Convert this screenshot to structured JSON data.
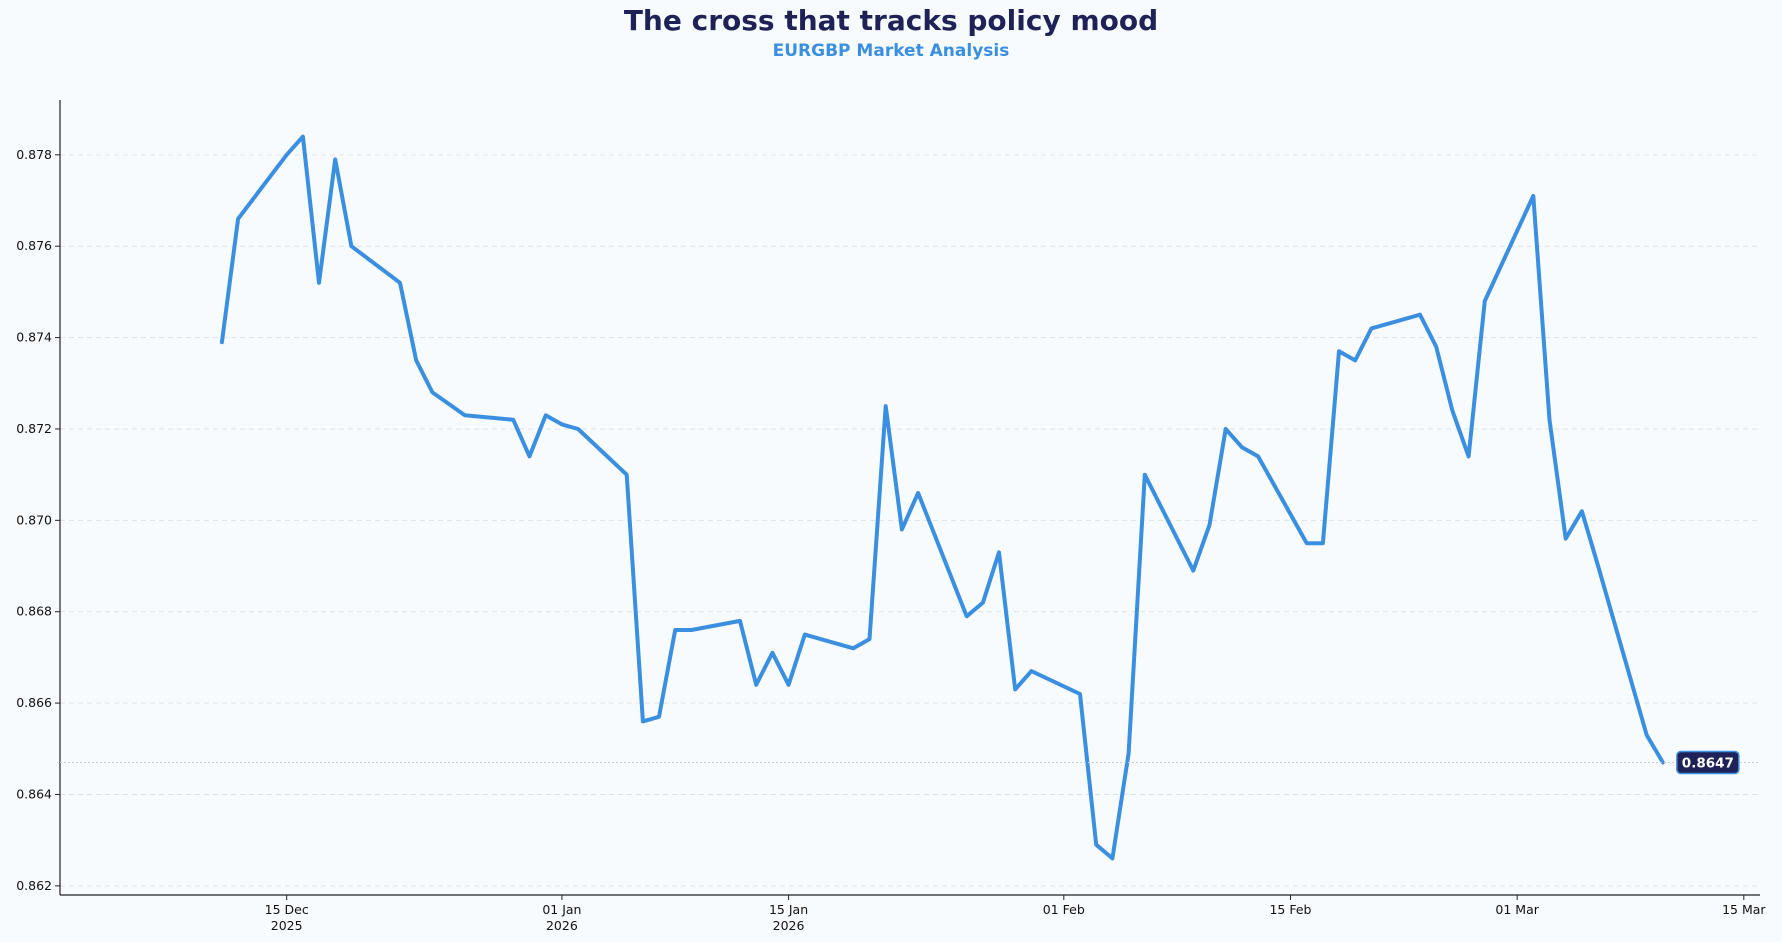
{
  "title": "The cross that tracks policy mood",
  "subtitle": "EURGBP Market Analysis",
  "chart_data": {
    "type": "line",
    "title": "The cross that tracks policy mood",
    "subtitle": "EURGBP Market Analysis",
    "xlabel": "",
    "ylabel": "",
    "ylim": [
      0.8618,
      0.8792
    ],
    "xlim": [
      "2025-12-01",
      "2026-03-16"
    ],
    "grid": "horizontal dashed",
    "color": "#3a8fe0",
    "y_ticks": [
      "0.862",
      "0.864",
      "0.866",
      "0.868",
      "0.870",
      "0.872",
      "0.874",
      "0.876",
      "0.878"
    ],
    "x_ticks": [
      {
        "date": "2025-12-15",
        "label": "15 Dec",
        "sublabel": "2025"
      },
      {
        "date": "2026-01-01",
        "label": "01 Jan",
        "sublabel": "2026"
      },
      {
        "date": "2026-01-15",
        "label": "15 Jan",
        "sublabel": "2026"
      },
      {
        "date": "2026-02-01",
        "label": "01 Feb",
        "sublabel": ""
      },
      {
        "date": "2026-02-15",
        "label": "15 Feb",
        "sublabel": ""
      },
      {
        "date": "2026-03-01",
        "label": "01 Mar",
        "sublabel": ""
      },
      {
        "date": "2026-03-15",
        "label": "15 Mar",
        "sublabel": ""
      }
    ],
    "series": [
      {
        "x": [
          "2025-12-11",
          "2025-12-12",
          "2025-12-15",
          "2025-12-16",
          "2025-12-17",
          "2025-12-18",
          "2025-12-19",
          "2025-12-22",
          "2025-12-23",
          "2025-12-24",
          "2025-12-26",
          "2025-12-29",
          "2025-12-30",
          "2025-12-31",
          "2026-01-01",
          "2026-01-02",
          "2026-01-05",
          "2026-01-06",
          "2026-01-07",
          "2026-01-08",
          "2026-01-09",
          "2026-01-12",
          "2026-01-13",
          "2026-01-14",
          "2026-01-15",
          "2026-01-16",
          "2026-01-19",
          "2026-01-20",
          "2026-01-21",
          "2026-01-22",
          "2026-01-23",
          "2026-01-26",
          "2026-01-27",
          "2026-01-28",
          "2026-01-29",
          "2026-01-30",
          "2026-02-02",
          "2026-02-03",
          "2026-02-04",
          "2026-02-05",
          "2026-02-06",
          "2026-02-09",
          "2026-02-10",
          "2026-02-11",
          "2026-02-12",
          "2026-02-13",
          "2026-02-16",
          "2026-02-17",
          "2026-02-18",
          "2026-02-19",
          "2026-02-20",
          "2026-02-23",
          "2026-02-24",
          "2026-02-25",
          "2026-02-26",
          "2026-02-27",
          "2026-03-02",
          "2026-03-03",
          "2026-03-04",
          "2026-03-05",
          "2026-03-06",
          "2026-03-09",
          "2026-03-10"
        ],
        "values": [
          0.8739,
          0.8766,
          0.878,
          0.8784,
          0.8752,
          0.8779,
          0.876,
          0.8752,
          0.8735,
          0.8728,
          0.8723,
          0.8722,
          0.8714,
          0.8723,
          0.8721,
          0.872,
          0.871,
          0.8656,
          0.8657,
          0.8676,
          0.8676,
          0.8678,
          0.8664,
          0.8671,
          0.8664,
          0.8675,
          0.8672,
          0.8674,
          0.8725,
          0.8698,
          0.8706,
          0.8679,
          0.8682,
          0.8693,
          0.8663,
          0.8667,
          0.8662,
          0.8629,
          0.8626,
          0.8649,
          0.871,
          0.8689,
          0.8699,
          0.872,
          0.8716,
          0.8714,
          0.8695,
          0.8695,
          0.8737,
          0.8735,
          0.8742,
          0.8745,
          0.8738,
          0.8724,
          0.8714,
          0.8748,
          0.8771,
          0.8722,
          0.8696,
          0.8702,
          0.869,
          0.8653,
          0.8647
        ]
      }
    ],
    "last_value_label": "0.8647"
  }
}
